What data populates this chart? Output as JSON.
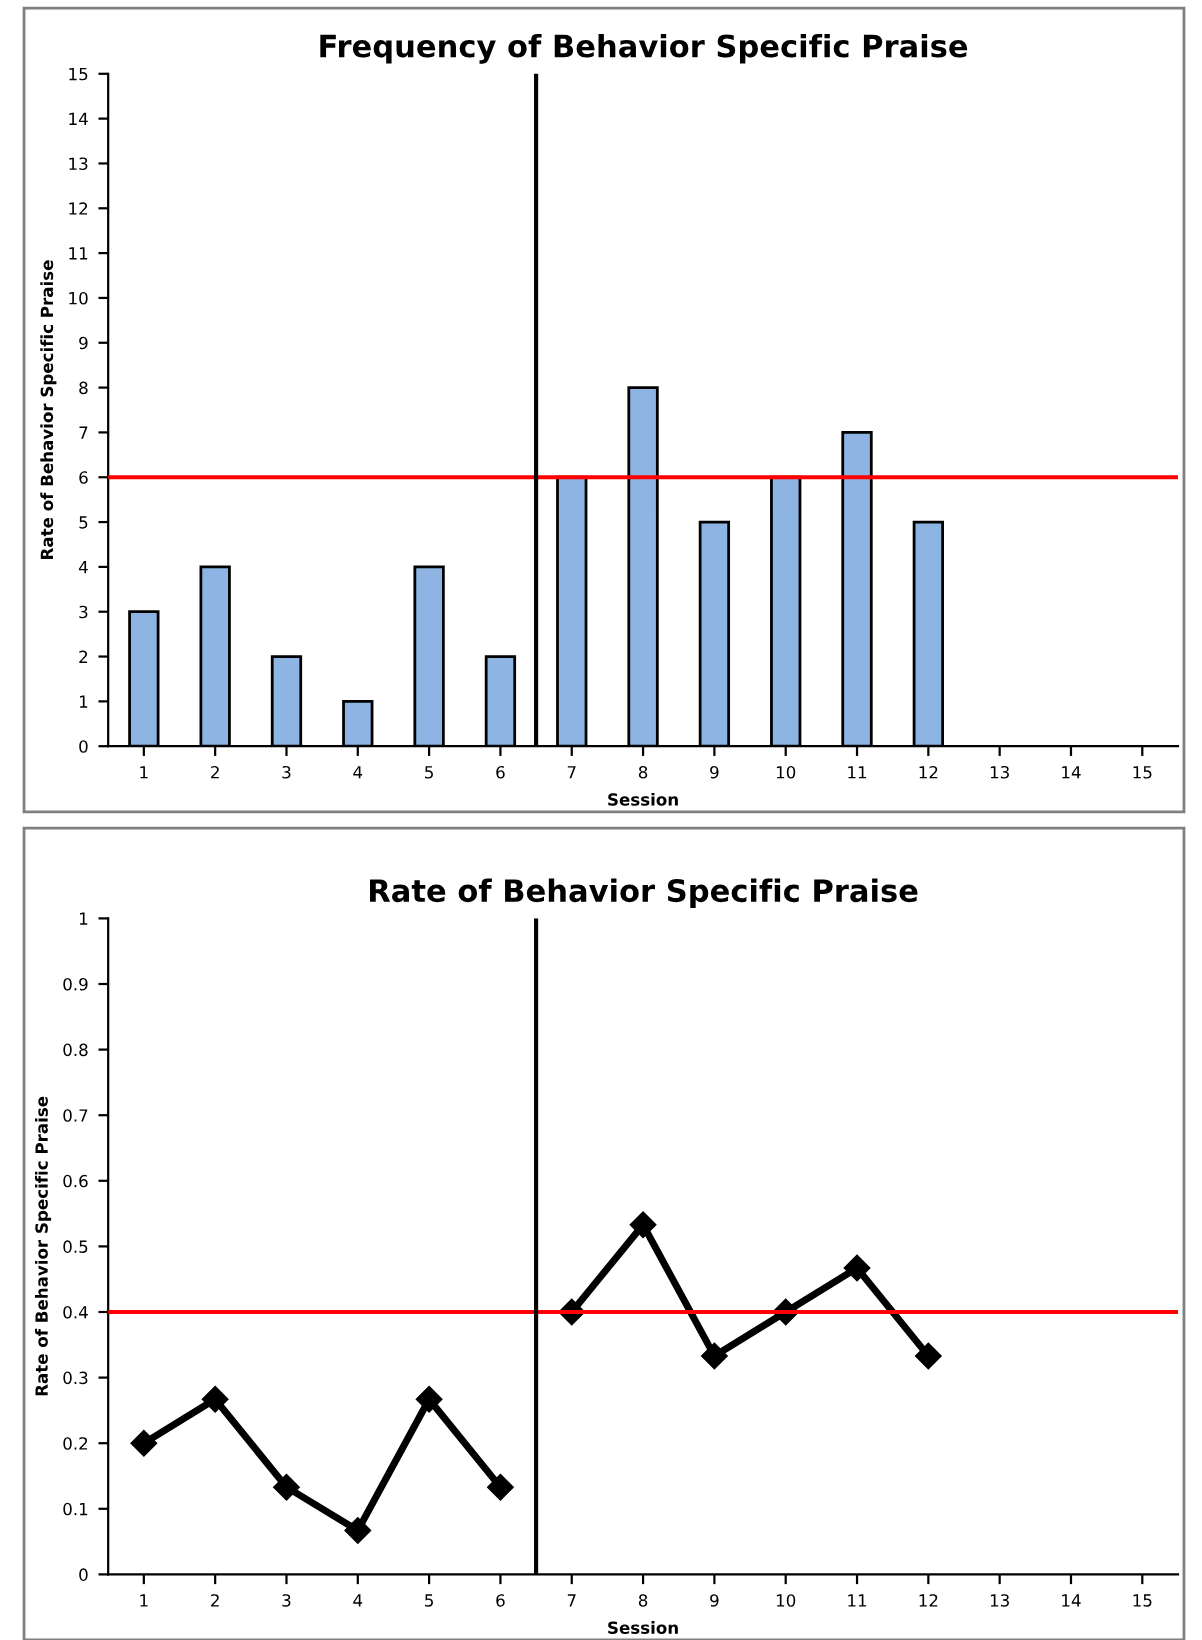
{
  "chart_data": [
    {
      "type": "bar",
      "title": "Frequency of Behavior Specific Praise",
      "xlabel": "Session",
      "ylabel": "Rate of Behavior Specific Praise",
      "x": [
        1,
        2,
        3,
        4,
        5,
        6,
        7,
        8,
        9,
        10,
        11,
        12
      ],
      "series": [
        {
          "color": "#8db4e2",
          "values": [
            3,
            4,
            2,
            1,
            4,
            2,
            6,
            8,
            5,
            6,
            7,
            5
          ]
        }
      ],
      "xlim": [
        0.5,
        15.5
      ],
      "xticks": [
        1,
        2,
        3,
        4,
        5,
        6,
        7,
        8,
        9,
        10,
        11,
        12,
        13,
        14,
        15
      ],
      "ylim": [
        0,
        15
      ],
      "yticks": [
        0,
        1,
        2,
        3,
        4,
        5,
        6,
        7,
        8,
        9,
        10,
        11,
        12,
        13,
        14,
        15
      ],
      "ref_lines": [
        {
          "axis": "y",
          "value": 6,
          "color": "#ff0000"
        },
        {
          "axis": "x",
          "value": 6.5,
          "color": "#000000"
        }
      ]
    },
    {
      "type": "line",
      "title": "Rate of Behavior Specific Praise",
      "xlabel": "Session",
      "ylabel": "Rate of Behavior Specific Praise",
      "series": [
        {
          "color": "#000000",
          "x": [
            1,
            2,
            3,
            4,
            5,
            6
          ],
          "values": [
            0.2,
            0.267,
            0.133,
            0.067,
            0.267,
            0.133
          ]
        },
        {
          "color": "#000000",
          "x": [
            7,
            8,
            9,
            10,
            11,
            12
          ],
          "values": [
            0.4,
            0.533,
            0.333,
            0.4,
            0.467,
            0.333
          ]
        }
      ],
      "marker": "diamond",
      "xlim": [
        0.5,
        15.5
      ],
      "xticks": [
        1,
        2,
        3,
        4,
        5,
        6,
        7,
        8,
        9,
        10,
        11,
        12,
        13,
        14,
        15
      ],
      "ylim": [
        0,
        1
      ],
      "yticks": [
        0,
        0.1,
        0.2,
        0.3,
        0.4,
        0.5,
        0.6,
        0.7,
        0.8,
        0.9,
        1
      ],
      "ref_lines": [
        {
          "axis": "y",
          "value": 0.4,
          "color": "#ff0000"
        },
        {
          "axis": "x",
          "value": 6.5,
          "color": "#000000"
        }
      ]
    }
  ]
}
